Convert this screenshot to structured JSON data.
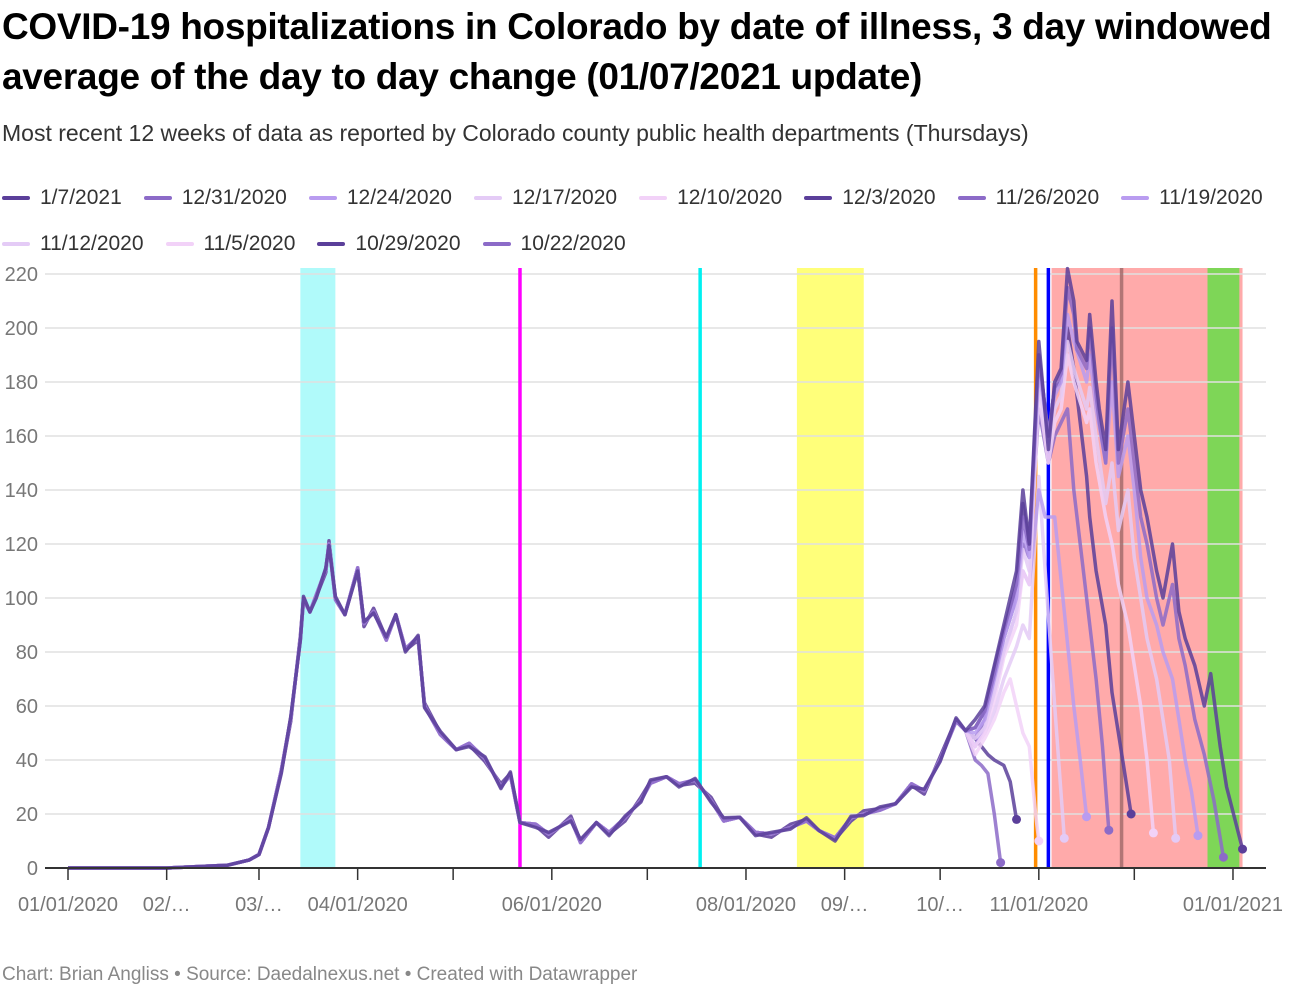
{
  "chart_data": {
    "type": "line",
    "title": "COVID-19 hospitalizations in Colorado by date of illness, 3 day windowed average of the day to day change (01/07/2021 update)",
    "subtitle": "Most recent 12 weeks of data as reported by Colorado county public health departments (Thursdays)",
    "footer": "Chart: Brian Angliss • Source: Daedalnexus.net • Created with Datawrapper",
    "x_unit": "days since 01/01/2020",
    "xlim": [
      0,
      372
    ],
    "ylim": [
      0,
      220
    ],
    "yticks": [
      0,
      20,
      40,
      60,
      80,
      100,
      120,
      140,
      160,
      180,
      200,
      220
    ],
    "month_ticks": [
      0,
      31,
      60,
      91,
      121,
      152,
      182,
      213,
      244,
      274,
      305,
      335,
      366
    ],
    "xlabels": [
      {
        "x": 0,
        "label": "01/01/2020"
      },
      {
        "x": 31,
        "label": "02/…"
      },
      {
        "x": 60,
        "label": "03/…"
      },
      {
        "x": 91,
        "label": "04/01/2020"
      },
      {
        "x": 152,
        "label": "06/01/2020"
      },
      {
        "x": 213,
        "label": "08/01/2020"
      },
      {
        "x": 244,
        "label": "09/…"
      },
      {
        "x": 274,
        "label": "10/…"
      },
      {
        "x": 305,
        "label": "11/01/2020"
      },
      {
        "x": 366,
        "label": "01/01/2021"
      }
    ],
    "bands": [
      {
        "from": 73,
        "to": 84,
        "color": "#b0fafa"
      },
      {
        "from": 229,
        "to": 250,
        "color": "#ffff7a"
      },
      {
        "from": 309,
        "to": 369,
        "color": "#ffaaaa"
      },
      {
        "from": 358,
        "to": 368,
        "color": "#7ed657"
      }
    ],
    "vlines": [
      {
        "x": 142,
        "color": "#ff00ff"
      },
      {
        "x": 198.6,
        "color": "#00f0f0"
      },
      {
        "x": 304,
        "color": "#ff8c00"
      },
      {
        "x": 308,
        "color": "#0000ff"
      },
      {
        "x": 331,
        "color": "#a06868"
      }
    ],
    "shared_history": [
      [
        0,
        0
      ],
      [
        31,
        0
      ],
      [
        50,
        1
      ],
      [
        57,
        3
      ],
      [
        60,
        5
      ],
      [
        63,
        15
      ],
      [
        67,
        35
      ],
      [
        70,
        55
      ],
      [
        73,
        85
      ],
      [
        74,
        100
      ],
      [
        76,
        96
      ],
      [
        78,
        100
      ],
      [
        81,
        110
      ],
      [
        82,
        120
      ],
      [
        84,
        100
      ],
      [
        87,
        95
      ],
      [
        91,
        110
      ],
      [
        93,
        90
      ],
      [
        96,
        95
      ],
      [
        100,
        85
      ],
      [
        103,
        95
      ],
      [
        106,
        80
      ],
      [
        110,
        85
      ],
      [
        112,
        60
      ],
      [
        117,
        50
      ],
      [
        122,
        45
      ],
      [
        126,
        45
      ],
      [
        131,
        40
      ],
      [
        136,
        30
      ],
      [
        139,
        35
      ],
      [
        142,
        18
      ],
      [
        147,
        15
      ],
      [
        151,
        12
      ],
      [
        158,
        18
      ],
      [
        161,
        10
      ],
      [
        166,
        18
      ],
      [
        170,
        12
      ],
      [
        175,
        18
      ],
      [
        180,
        25
      ],
      [
        183,
        32
      ],
      [
        188,
        35
      ],
      [
        192,
        30
      ],
      [
        197,
        32
      ],
      [
        202,
        25
      ],
      [
        206,
        18
      ],
      [
        211,
        20
      ],
      [
        216,
        12
      ],
      [
        221,
        12
      ],
      [
        227,
        15
      ],
      [
        232,
        18
      ],
      [
        236,
        15
      ],
      [
        241,
        10
      ],
      [
        246,
        18
      ],
      [
        250,
        20
      ],
      [
        255,
        22
      ],
      [
        260,
        25
      ],
      [
        265,
        30
      ],
      [
        269,
        28
      ],
      [
        274,
        40
      ],
      [
        279,
        55
      ],
      [
        282,
        52
      ]
    ],
    "series": [
      {
        "name": "10/22/2020",
        "color": "#8c6bc8",
        "tail": [
          [
            285,
            40
          ],
          [
            287,
            38
          ],
          [
            289,
            35
          ],
          [
            291,
            20
          ],
          [
            293,
            2
          ]
        ]
      },
      {
        "name": "10/29/2020",
        "color": "#5b3f9a",
        "tail": [
          [
            285,
            48
          ],
          [
            287,
            45
          ],
          [
            289,
            42
          ],
          [
            291,
            40
          ],
          [
            294,
            38
          ],
          [
            296,
            32
          ],
          [
            298,
            18
          ]
        ]
      },
      {
        "name": "11/5/2020",
        "color": "#f2d2f8",
        "tail": [
          [
            285,
            42
          ],
          [
            288,
            48
          ],
          [
            291,
            55
          ],
          [
            294,
            65
          ],
          [
            296,
            70
          ],
          [
            298,
            60
          ],
          [
            300,
            50
          ],
          [
            302,
            45
          ],
          [
            304,
            20
          ],
          [
            305,
            10
          ]
        ]
      },
      {
        "name": "11/12/2020",
        "color": "#e4cbf6",
        "tail": [
          [
            285,
            45
          ],
          [
            288,
            50
          ],
          [
            291,
            58
          ],
          [
            294,
            70
          ],
          [
            298,
            82
          ],
          [
            300,
            90
          ],
          [
            302,
            85
          ],
          [
            305,
            145
          ],
          [
            307,
            110
          ],
          [
            310,
            60
          ],
          [
            313,
            11
          ]
        ]
      },
      {
        "name": "11/19/2020",
        "color": "#b99cf0",
        "tail": [
          [
            285,
            45
          ],
          [
            288,
            52
          ],
          [
            291,
            65
          ],
          [
            294,
            80
          ],
          [
            298,
            95
          ],
          [
            300,
            110
          ],
          [
            302,
            105
          ],
          [
            305,
            140
          ],
          [
            307,
            130
          ],
          [
            310,
            130
          ],
          [
            313,
            95
          ],
          [
            316,
            60
          ],
          [
            318,
            40
          ],
          [
            320,
            19
          ]
        ]
      },
      {
        "name": "11/26/2020",
        "color": "#8c6bc8",
        "tail": [
          [
            285,
            48
          ],
          [
            288,
            55
          ],
          [
            291,
            70
          ],
          [
            294,
            85
          ],
          [
            298,
            100
          ],
          [
            300,
            120
          ],
          [
            302,
            115
          ],
          [
            305,
            170
          ],
          [
            308,
            150
          ],
          [
            310,
            160
          ],
          [
            312,
            165
          ],
          [
            314,
            170
          ],
          [
            316,
            140
          ],
          [
            318,
            120
          ],
          [
            320,
            100
          ],
          [
            323,
            70
          ],
          [
            325,
            45
          ],
          [
            327,
            14
          ]
        ]
      },
      {
        "name": "12/3/2020",
        "color": "#5b3f9a",
        "tail": [
          [
            285,
            52
          ],
          [
            288,
            58
          ],
          [
            291,
            74
          ],
          [
            294,
            88
          ],
          [
            298,
            105
          ],
          [
            300,
            135
          ],
          [
            302,
            120
          ],
          [
            305,
            190
          ],
          [
            308,
            160
          ],
          [
            310,
            178
          ],
          [
            312,
            180
          ],
          [
            314,
            200
          ],
          [
            316,
            185
          ],
          [
            318,
            165
          ],
          [
            320,
            145
          ],
          [
            321,
            130
          ],
          [
            323,
            110
          ],
          [
            326,
            90
          ],
          [
            328,
            65
          ],
          [
            330,
            50
          ],
          [
            332,
            35
          ],
          [
            334,
            20
          ]
        ]
      },
      {
        "name": "12/10/2020",
        "color": "#f2d2f8",
        "tail": [
          [
            285,
            45
          ],
          [
            288,
            50
          ],
          [
            291,
            62
          ],
          [
            294,
            78
          ],
          [
            298,
            90
          ],
          [
            300,
            110
          ],
          [
            302,
            105
          ],
          [
            305,
            175
          ],
          [
            308,
            150
          ],
          [
            310,
            165
          ],
          [
            312,
            170
          ],
          [
            314,
            190
          ],
          [
            316,
            180
          ],
          [
            320,
            165
          ],
          [
            321,
            170
          ],
          [
            323,
            150
          ],
          [
            326,
            130
          ],
          [
            328,
            120
          ],
          [
            330,
            105
          ],
          [
            333,
            90
          ],
          [
            335,
            75
          ],
          [
            337,
            60
          ],
          [
            339,
            40
          ],
          [
            341,
            13
          ]
        ]
      },
      {
        "name": "12/17/2020",
        "color": "#e4cbf6",
        "tail": [
          [
            285,
            48
          ],
          [
            288,
            52
          ],
          [
            291,
            65
          ],
          [
            294,
            80
          ],
          [
            298,
            95
          ],
          [
            300,
            118
          ],
          [
            302,
            110
          ],
          [
            305,
            180
          ],
          [
            308,
            155
          ],
          [
            310,
            170
          ],
          [
            312,
            175
          ],
          [
            314,
            195
          ],
          [
            316,
            185
          ],
          [
            320,
            170
          ],
          [
            321,
            178
          ],
          [
            323,
            160
          ],
          [
            326,
            135
          ],
          [
            328,
            150
          ],
          [
            330,
            125
          ],
          [
            333,
            140
          ],
          [
            335,
            115
          ],
          [
            337,
            100
          ],
          [
            339,
            85
          ],
          [
            342,
            70
          ],
          [
            344,
            55
          ],
          [
            346,
            40
          ],
          [
            348,
            11
          ]
        ]
      },
      {
        "name": "12/24/2020",
        "color": "#b99cf0",
        "tail": [
          [
            285,
            50
          ],
          [
            288,
            55
          ],
          [
            291,
            70
          ],
          [
            294,
            85
          ],
          [
            298,
            100
          ],
          [
            300,
            125
          ],
          [
            302,
            115
          ],
          [
            305,
            185
          ],
          [
            308,
            160
          ],
          [
            310,
            175
          ],
          [
            312,
            180
          ],
          [
            314,
            205
          ],
          [
            316,
            195
          ],
          [
            320,
            180
          ],
          [
            321,
            190
          ],
          [
            323,
            170
          ],
          [
            326,
            150
          ],
          [
            328,
            180
          ],
          [
            330,
            145
          ],
          [
            333,
            160
          ],
          [
            335,
            140
          ],
          [
            337,
            115
          ],
          [
            339,
            100
          ],
          [
            342,
            90
          ],
          [
            344,
            80
          ],
          [
            347,
            70
          ],
          [
            349,
            55
          ],
          [
            351,
            40
          ],
          [
            353,
            28
          ],
          [
            355,
            12
          ]
        ]
      },
      {
        "name": "12/31/2020",
        "color": "#8c6bc8",
        "tail": [
          [
            285,
            52
          ],
          [
            288,
            58
          ],
          [
            291,
            72
          ],
          [
            294,
            88
          ],
          [
            298,
            105
          ],
          [
            300,
            130
          ],
          [
            302,
            118
          ],
          [
            305,
            190
          ],
          [
            308,
            160
          ],
          [
            310,
            178
          ],
          [
            312,
            183
          ],
          [
            314,
            215
          ],
          [
            316,
            205
          ],
          [
            317,
            192
          ],
          [
            320,
            185
          ],
          [
            321,
            200
          ],
          [
            323,
            175
          ],
          [
            324,
            165
          ],
          [
            326,
            150
          ],
          [
            328,
            200
          ],
          [
            330,
            150
          ],
          [
            333,
            170
          ],
          [
            335,
            150
          ],
          [
            337,
            130
          ],
          [
            339,
            120
          ],
          [
            342,
            100
          ],
          [
            344,
            90
          ],
          [
            347,
            105
          ],
          [
            349,
            85
          ],
          [
            351,
            75
          ],
          [
            354,
            55
          ],
          [
            357,
            42
          ],
          [
            360,
            25
          ],
          [
            363,
            4
          ]
        ]
      },
      {
        "name": "1/7/2021",
        "color": "#5b3f9a",
        "tail": [
          [
            285,
            55
          ],
          [
            288,
            60
          ],
          [
            291,
            75
          ],
          [
            294,
            90
          ],
          [
            298,
            110
          ],
          [
            300,
            140
          ],
          [
            302,
            120
          ],
          [
            305,
            195
          ],
          [
            308,
            155
          ],
          [
            310,
            180
          ],
          [
            312,
            185
          ],
          [
            314,
            222
          ],
          [
            316,
            210
          ],
          [
            317,
            195
          ],
          [
            320,
            188
          ],
          [
            321,
            205
          ],
          [
            323,
            180
          ],
          [
            324,
            170
          ],
          [
            326,
            155
          ],
          [
            328,
            210
          ],
          [
            330,
            155
          ],
          [
            333,
            180
          ],
          [
            335,
            160
          ],
          [
            337,
            140
          ],
          [
            339,
            130
          ],
          [
            342,
            110
          ],
          [
            344,
            100
          ],
          [
            347,
            120
          ],
          [
            349,
            95
          ],
          [
            351,
            85
          ],
          [
            354,
            75
          ],
          [
            357,
            60
          ],
          [
            359,
            72
          ],
          [
            362,
            45
          ],
          [
            364,
            30
          ],
          [
            369,
            7
          ]
        ]
      }
    ],
    "legend_order": [
      "1/7/2021",
      "12/31/2020",
      "12/24/2020",
      "12/17/2020",
      "12/10/2020",
      "12/3/2020",
      "11/26/2020",
      "11/19/2020",
      "11/12/2020",
      "11/5/2020",
      "10/29/2020",
      "10/22/2020"
    ]
  }
}
